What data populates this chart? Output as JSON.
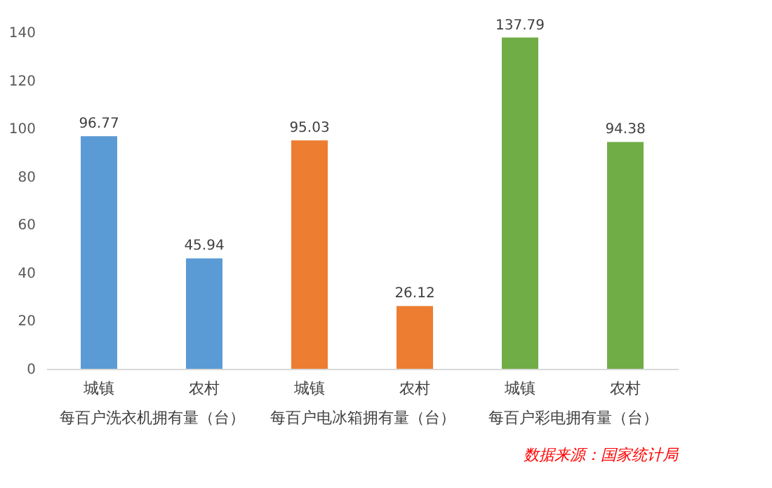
{
  "chart_data": [
    {
      "type": "bar",
      "categories": [
        "城镇",
        "农村"
      ],
      "xlabel": "每百户洗衣机拥有量（台）",
      "series": [
        {
          "color": "#5b9bd5",
          "values": [
            96.77,
            45.94
          ]
        }
      ],
      "ylim": [
        0,
        140
      ],
      "yticks": [
        0,
        20,
        40,
        60,
        80,
        100,
        120,
        140
      ],
      "data_labels": true,
      "grid": false
    },
    {
      "type": "bar",
      "categories": [
        "城镇",
        "农村"
      ],
      "xlabel": "每百户电冰箱拥有量（台）",
      "series": [
        {
          "color": "#ed7d31",
          "values": [
            95.03,
            26.12
          ]
        }
      ],
      "tick_labels": "x",
      "data_labels": true,
      "grid": false
    },
    {
      "type": "bar",
      "categories": [
        "城镇",
        "农村"
      ],
      "xlabel": "每百户彩电拥有量（台）",
      "series": [
        {
          "color": "#70ad47",
          "values": [
            137.79,
            94.38
          ]
        }
      ],
      "tick_labels": "x",
      "data_labels": true,
      "grid": false,
      "annotations": [
        "数据来源：国家统计局"
      ]
    }
  ]
}
